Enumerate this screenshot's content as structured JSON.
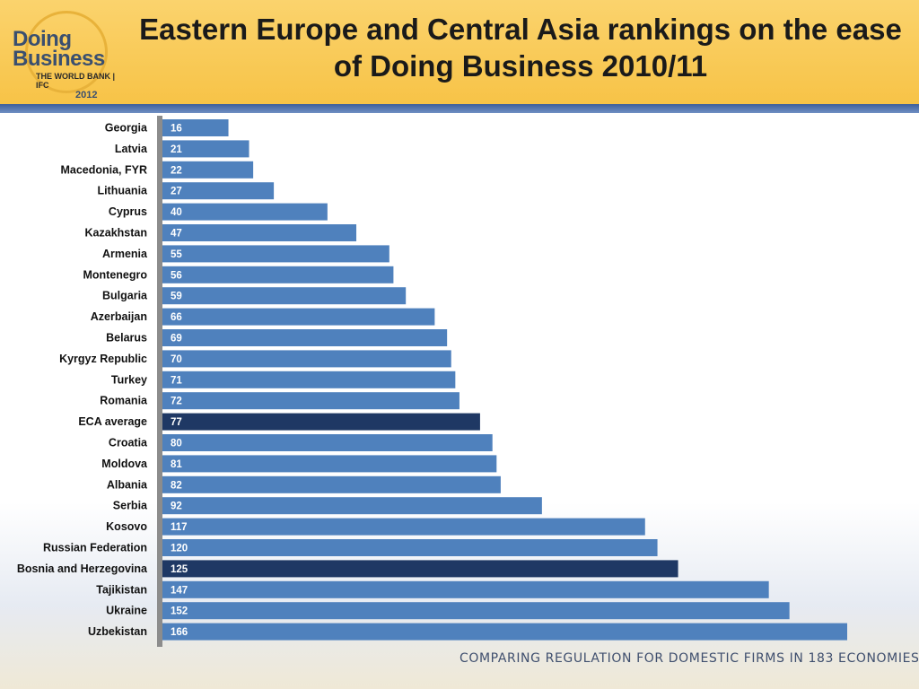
{
  "header": {
    "title": "Eastern Europe and Central Asia rankings on the ease of Doing Business 2010/11",
    "logo": {
      "line1": "Doing",
      "line2": "Business",
      "orgs": "THE WORLD BANK | IFC",
      "year": "2012"
    }
  },
  "footer": {
    "text": "COMPARING REGULATION FOR DOMESTIC FIRMS IN 183 ECONOMIES"
  },
  "colors": {
    "bar": "#4f81bd",
    "highlight": "#1f3864",
    "axis": "#8c8c8c"
  },
  "chart_data": {
    "type": "bar",
    "orientation": "horizontal",
    "categories": [
      "Georgia",
      "Latvia",
      "Macedonia, FYR",
      "Lithuania",
      "Cyprus",
      "Kazakhstan",
      "Armenia",
      "Montenegro",
      "Bulgaria",
      "Azerbaijan",
      "Belarus",
      "Kyrgyz Republic",
      "Turkey",
      "Romania",
      "ECA average",
      "Croatia",
      "Moldova",
      "Albania",
      "Serbia",
      "Kosovo",
      "Russian Federation",
      "Bosnia and Herzegovina",
      "Tajikistan",
      "Ukraine",
      "Uzbekistan"
    ],
    "values": [
      16,
      21,
      22,
      27,
      40,
      47,
      55,
      56,
      59,
      66,
      69,
      70,
      71,
      72,
      77,
      80,
      81,
      82,
      92,
      117,
      120,
      125,
      147,
      152,
      166
    ],
    "highlighted": [
      "ECA average",
      "Bosnia and Herzegovina"
    ],
    "xlim": [
      0,
      166
    ],
    "grid": false,
    "legend": "none"
  }
}
